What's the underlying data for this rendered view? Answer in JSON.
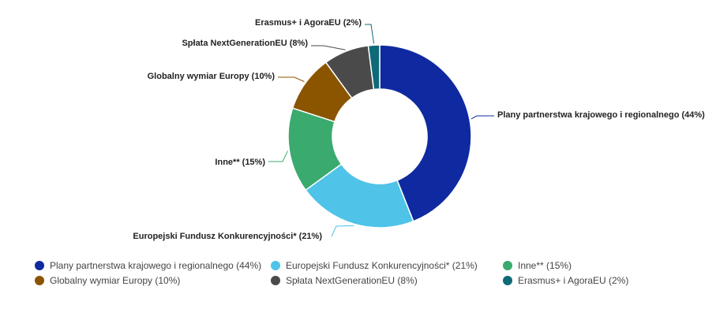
{
  "chart_data": {
    "type": "pie",
    "donut": true,
    "title": "",
    "categories": [
      "Plany partnerstwa krajowego i regionalnego",
      "Europejski Fundusz Konkurencyjności*",
      "Inne**",
      "Globalny wymiar Europy",
      "Spłata NextGenerationEU",
      "Erasmus+ i AgoraEU"
    ],
    "values": [
      44,
      21,
      15,
      10,
      8,
      2
    ],
    "labels": [
      "Plany partnerstwa krajowego i regionalnego (44%)",
      "Europejski Fundusz Konkurencyjności* (21%)",
      "Inne** (15%)",
      "Globalny wymiar Europy (10%)",
      "Spłata NextGenerationEU (8%)",
      "Erasmus+ i AgoraEU (2%)"
    ],
    "colors": [
      "#0f2aa0",
      "#4fc3e8",
      "#3aaa6e",
      "#8b5500",
      "#4a4a4a",
      "#0e6a78"
    ],
    "legend_position": "bottom"
  }
}
